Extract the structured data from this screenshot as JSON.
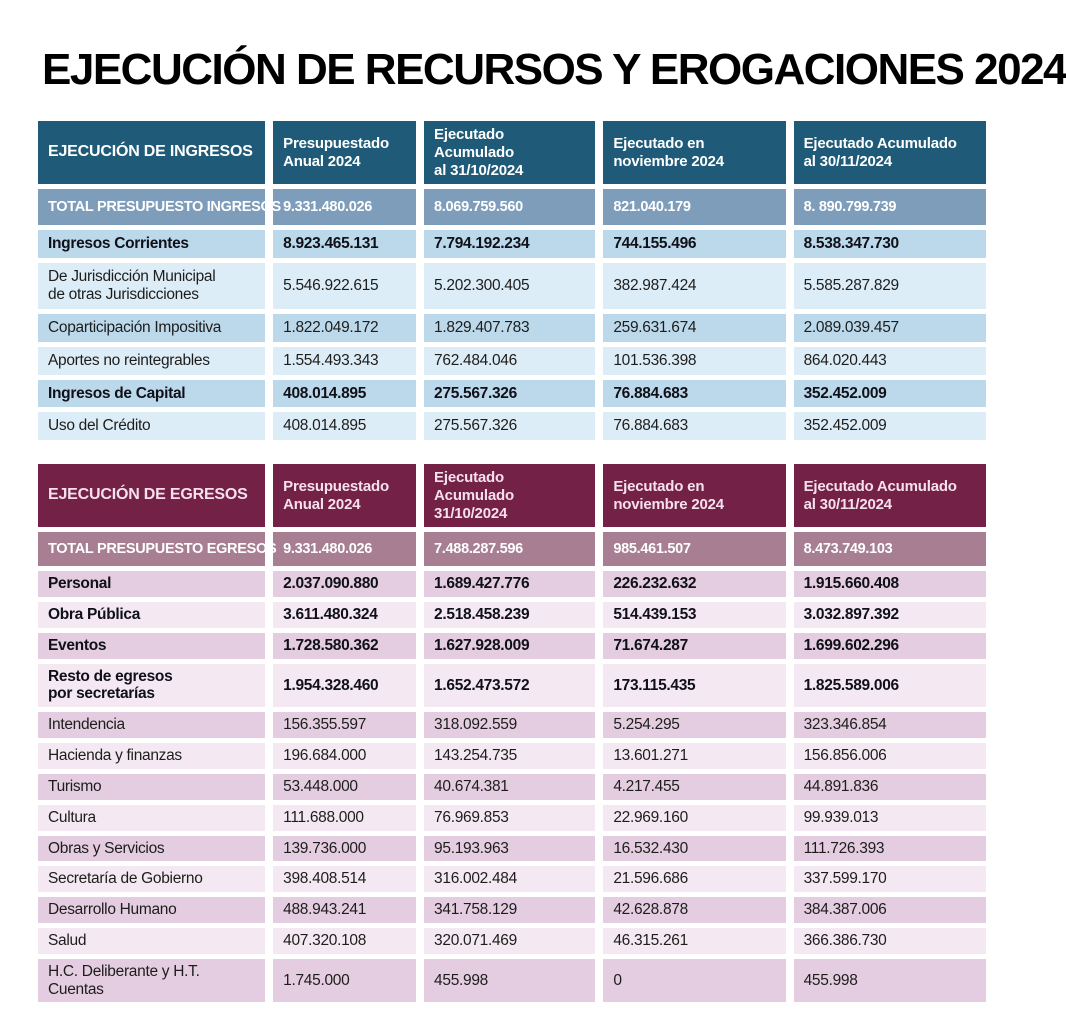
{
  "title": "EJECUCIÓN DE RECURSOS Y EROGACIONES 2024",
  "colors": {
    "ingresos_header_bg": "#1f5b78",
    "ingresos_total_bg": "#7e9dbb",
    "ingresos_row_medium": "#bcd9ec",
    "ingresos_row_light": "#ddedf8",
    "egresos_header_bg": "#742148",
    "egresos_total_bg": "#a87e93",
    "egresos_row_medium": "#e4cde1",
    "egresos_row_light": "#f4e9f3",
    "title_color": "#000000"
  },
  "tables": {
    "ingresos": {
      "corner_header": "EJECUCIÓN DE INGRESOS",
      "column_headers": [
        "Presupuestado\nAnual 2024",
        "Ejecutado Acumulado\nal 31/10/2024",
        "Ejecutado en\nnoviembre 2024",
        "Ejecutado Acumulado\nal 30/11/2024"
      ],
      "total_row": {
        "label": "TOTAL PRESUPUESTO INGRESOS",
        "values": [
          "9.331.480.026",
          "8.069.759.560",
          "821.040.179",
          "8. 890.799.739"
        ]
      },
      "rows": [
        {
          "label": "Ingresos Corrientes",
          "bold": true,
          "values": [
            "8.923.465.131",
            "7.794.192.234",
            "744.155.496",
            "8.538.347.730"
          ]
        },
        {
          "label": "De Jurisdicción Municipal\nde otras Jurisdicciones",
          "bold": false,
          "values": [
            "5.546.922.615",
            "5.202.300.405",
            "382.987.424",
            "5.585.287.829"
          ]
        },
        {
          "label": "Coparticipación Impositiva",
          "bold": false,
          "values": [
            "1.822.049.172",
            "1.829.407.783",
            "259.631.674",
            "2.089.039.457"
          ]
        },
        {
          "label": "Aportes no reintegrables",
          "bold": false,
          "values": [
            "1.554.493.343",
            "762.484.046",
            "101.536.398",
            "864.020.443"
          ]
        },
        {
          "label": "Ingresos de Capital",
          "bold": true,
          "values": [
            "408.014.895",
            "275.567.326",
            "76.884.683",
            "352.452.009"
          ]
        },
        {
          "label": "Uso del Crédito",
          "bold": false,
          "values": [
            "408.014.895",
            "275.567.326",
            "76.884.683",
            "352.452.009"
          ]
        }
      ]
    },
    "egresos": {
      "corner_header": "EJECUCIÓN DE EGRESOS",
      "column_headers": [
        "Presupuestado\nAnual 2024",
        "Ejecutado Acumulado\n31/10/2024",
        "Ejecutado en\nnoviembre 2024",
        "Ejecutado Acumulado\nal 30/11/2024"
      ],
      "total_row": {
        "label": "TOTAL PRESUPUESTO EGRESOS",
        "values": [
          "9.331.480.026",
          "7.488.287.596",
          "985.461.507",
          "8.473.749.103"
        ]
      },
      "rows": [
        {
          "label": "Personal",
          "bold": true,
          "values": [
            "2.037.090.880",
            "1.689.427.776",
            "226.232.632",
            "1.915.660.408"
          ]
        },
        {
          "label": "Obra Pública",
          "bold": true,
          "values": [
            "3.611.480.324",
            "2.518.458.239",
            "514.439.153",
            "3.032.897.392"
          ]
        },
        {
          "label": "Eventos",
          "bold": true,
          "values": [
            "1.728.580.362",
            "1.627.928.009",
            "71.674.287",
            "1.699.602.296"
          ]
        },
        {
          "label": "Resto de egresos\npor secretarías",
          "bold": true,
          "values": [
            "1.954.328.460",
            "1.652.473.572",
            "173.115.435",
            "1.825.589.006"
          ]
        },
        {
          "label": "Intendencia",
          "bold": false,
          "values": [
            "156.355.597",
            "318.092.559",
            "5.254.295",
            "323.346.854"
          ]
        },
        {
          "label": "Hacienda y finanzas",
          "bold": false,
          "values": [
            "196.684.000",
            "143.254.735",
            "13.601.271",
            "156.856.006"
          ]
        },
        {
          "label": "Turismo",
          "bold": false,
          "values": [
            "53.448.000",
            "40.674.381",
            "4.217.455",
            "44.891.836"
          ]
        },
        {
          "label": "Cultura",
          "bold": false,
          "values": [
            "111.688.000",
            "76.969.853",
            "22.969.160",
            "99.939.013"
          ]
        },
        {
          "label": "Obras y Servicios",
          "bold": false,
          "values": [
            "139.736.000",
            "95.193.963",
            "16.532.430",
            "111.726.393"
          ]
        },
        {
          "label": "Secretaría de Gobierno",
          "bold": false,
          "values": [
            "398.408.514",
            "316.002.484",
            "21.596.686",
            "337.599.170"
          ]
        },
        {
          "label": "Desarrollo Humano",
          "bold": false,
          "values": [
            "488.943.241",
            "341.758.129",
            "42.628.878",
            "384.387.006"
          ]
        },
        {
          "label": "Salud",
          "bold": false,
          "values": [
            "407.320.108",
            "320.071.469",
            "46.315.261",
            "366.386.730"
          ]
        },
        {
          "label": "H.C. Deliberante y H.T. Cuentas",
          "bold": false,
          "values": [
            "1.745.000",
            "455.998",
            "0",
            "455.998"
          ]
        }
      ]
    }
  }
}
